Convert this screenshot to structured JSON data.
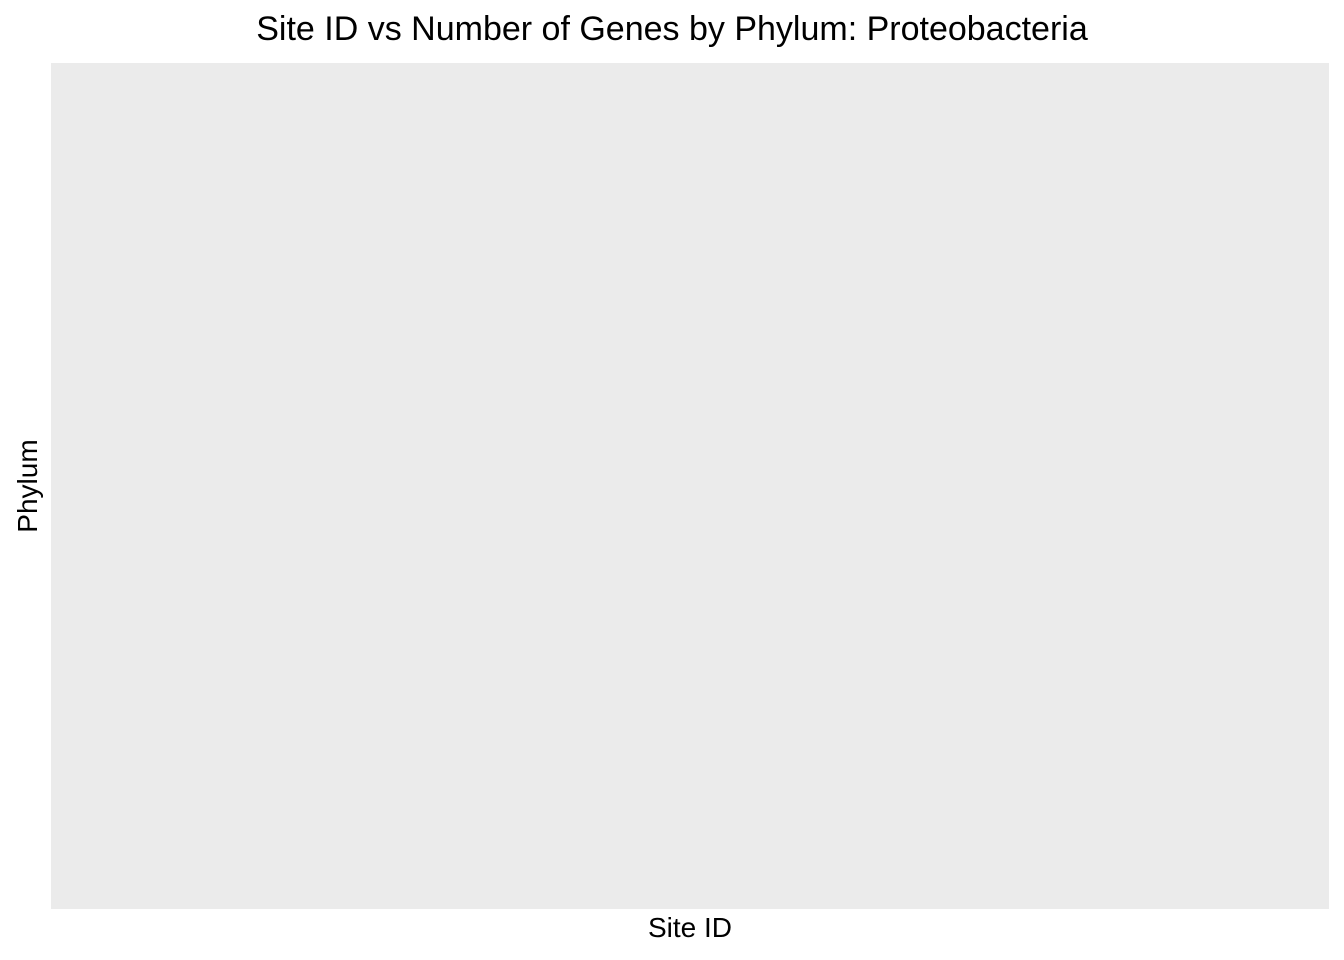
{
  "chart_data": {
    "type": "heatmap",
    "title": "Site ID vs Number of Genes by Phylum: Proteobacteria",
    "xlabel": "Site ID",
    "ylabel": "Phylum",
    "categories": [],
    "series": [],
    "grid": false,
    "legend": "none",
    "colors": {
      "panel_background": "#ebebeb",
      "page_background": "#ffffff",
      "text": "#000000"
    }
  }
}
